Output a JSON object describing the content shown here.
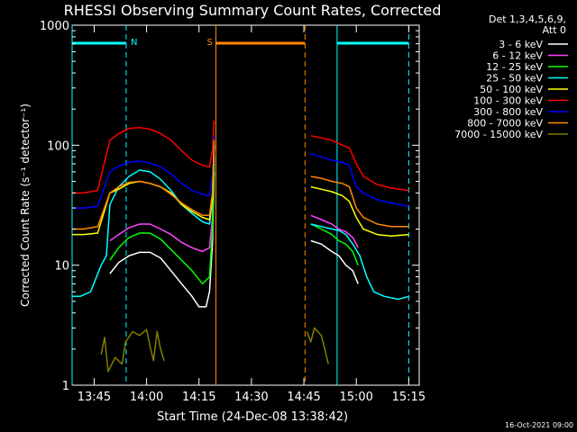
{
  "chart_data": {
    "type": "line",
    "title": "RHESSI Observing Summary Count Rates, Corrected",
    "xlabel": "Start Time (24-Dec-08 13:38:42)",
    "ylabel": "Corrected Count Rate (s⁻¹ detector⁻¹)",
    "xlim": [
      "13:38:42",
      "15:18:00"
    ],
    "ylim": [
      1,
      1000
    ],
    "yscale": "log",
    "x_ticks": [
      "13:45",
      "14:00",
      "14:15",
      "14:30",
      "14:45",
      "15:00",
      "15:15"
    ],
    "y_ticks": [
      "1",
      "10",
      "100",
      "1000"
    ],
    "legend_header": [
      "Det 1,3,4,5,6,9,",
      "Att 0"
    ],
    "legend_position": "right",
    "footer_timestamp": "16-Oct-2021 09:00",
    "annotations": [
      {
        "label": "N",
        "start": "13:38:42",
        "end": "13:54:10",
        "kind": "night"
      },
      {
        "label": "S",
        "start": "14:19:50",
        "end": "14:45:20",
        "kind": "saa"
      },
      {
        "label": "",
        "start": "14:54:30",
        "end": "15:15:00",
        "kind": "night"
      }
    ],
    "series": [
      {
        "name": "3 - 6 keV",
        "color": "#ffffff",
        "points": [
          [
            "13:49:30",
            8.5
          ],
          [
            "13:52:00",
            10.5
          ],
          [
            "13:55:00",
            12
          ],
          [
            "13:58:00",
            12.8
          ],
          [
            "14:01:00",
            12.8
          ],
          [
            "14:04:00",
            11.5
          ],
          [
            "14:07:00",
            9
          ],
          [
            "14:10:00",
            7
          ],
          [
            "14:13:00",
            5.5
          ],
          [
            "14:15:00",
            4.5
          ],
          [
            "14:17:00",
            4.5
          ],
          [
            "14:18:00",
            6
          ],
          [
            "14:18:50",
            15
          ],
          [
            "14:19:20",
            60
          ],
          [
            "gap",
            null
          ],
          [
            "14:47:00",
            16
          ],
          [
            "14:50:00",
            15
          ],
          [
            "14:53:00",
            13
          ],
          [
            "14:55:00",
            12
          ],
          [
            "14:57:00",
            10
          ],
          [
            "14:59:00",
            9
          ],
          [
            "15:00:30",
            7
          ]
        ]
      },
      {
        "name": "6 - 12 keV",
        "color": "#ff44ff",
        "points": [
          [
            "13:49:30",
            16
          ],
          [
            "13:52:00",
            18
          ],
          [
            "13:55:00",
            20.5
          ],
          [
            "13:58:00",
            22
          ],
          [
            "14:01:00",
            22
          ],
          [
            "14:04:00",
            20
          ],
          [
            "14:07:00",
            18
          ],
          [
            "14:10:00",
            15.5
          ],
          [
            "14:13:00",
            14
          ],
          [
            "14:16:00",
            13
          ],
          [
            "14:18:00",
            14
          ],
          [
            "14:18:50",
            25
          ],
          [
            "14:19:20",
            80
          ],
          [
            "gap",
            null
          ],
          [
            "14:47:00",
            26
          ],
          [
            "14:50:00",
            24
          ],
          [
            "14:53:00",
            22
          ],
          [
            "14:55:00",
            20
          ],
          [
            "14:57:00",
            19
          ],
          [
            "14:59:00",
            17
          ],
          [
            "15:00:30",
            14
          ]
        ]
      },
      {
        "name": "12 - 25 keV",
        "color": "#00ff00",
        "points": [
          [
            "13:49:30",
            11
          ],
          [
            "13:52:00",
            14
          ],
          [
            "13:55:00",
            17
          ],
          [
            "13:58:00",
            18.5
          ],
          [
            "14:01:00",
            18.5
          ],
          [
            "14:04:00",
            16.5
          ],
          [
            "14:07:00",
            13.5
          ],
          [
            "14:10:00",
            11
          ],
          [
            "14:13:00",
            9
          ],
          [
            "14:16:00",
            7
          ],
          [
            "14:18:00",
            8
          ],
          [
            "14:18:50",
            20
          ],
          [
            "14:19:20",
            70
          ],
          [
            "gap",
            null
          ],
          [
            "14:47:00",
            22
          ],
          [
            "14:50:00",
            20
          ],
          [
            "14:53:00",
            18
          ],
          [
            "14:55:00",
            16
          ],
          [
            "14:57:00",
            15
          ],
          [
            "14:59:00",
            13
          ],
          [
            "15:00:30",
            10
          ]
        ]
      },
      {
        "name": "25 - 50 keV",
        "color": "#00ffff",
        "points": [
          [
            "13:38:42",
            5.5
          ],
          [
            "13:41:00",
            5.5
          ],
          [
            "13:44:00",
            6
          ],
          [
            "13:47:00",
            10
          ],
          [
            "13:48:30",
            12
          ],
          [
            "13:49:30",
            32
          ],
          [
            "13:52:00",
            45
          ],
          [
            "13:55:00",
            55
          ],
          [
            "13:58:00",
            62
          ],
          [
            "14:01:00",
            60
          ],
          [
            "14:04:00",
            52
          ],
          [
            "14:07:00",
            42
          ],
          [
            "14:10:00",
            32
          ],
          [
            "14:13:00",
            27
          ],
          [
            "14:16:00",
            23
          ],
          [
            "14:18:00",
            22
          ],
          [
            "14:18:50",
            35
          ],
          [
            "14:19:20",
            100
          ],
          [
            "gap",
            null
          ],
          [
            "14:47:00",
            22
          ],
          [
            "14:50:00",
            21
          ],
          [
            "14:53:00",
            20
          ],
          [
            "14:55:00",
            19.5
          ],
          [
            "14:57:00",
            18
          ],
          [
            "14:59:00",
            15
          ],
          [
            "15:01:00",
            12
          ],
          [
            "15:03:00",
            8
          ],
          [
            "15:05:00",
            6
          ],
          [
            "15:08:00",
            5.5
          ],
          [
            "15:12:00",
            5.2
          ],
          [
            "15:15:00",
            5.5
          ]
        ]
      },
      {
        "name": "50 - 100 keV",
        "color": "#ffff00",
        "points": [
          [
            "13:38:42",
            18
          ],
          [
            "13:42:00",
            18
          ],
          [
            "13:46:00",
            18.5
          ],
          [
            "13:49:30",
            40
          ],
          [
            "13:52:00",
            43
          ],
          [
            "13:55:00",
            48
          ],
          [
            "13:58:00",
            50
          ],
          [
            "14:01:00",
            48
          ],
          [
            "14:04:00",
            45
          ],
          [
            "14:07:00",
            40
          ],
          [
            "14:10:00",
            32
          ],
          [
            "14:13:00",
            28
          ],
          [
            "14:16:00",
            25
          ],
          [
            "14:18:00",
            24
          ],
          [
            "14:18:50",
            35
          ],
          [
            "14:19:20",
            100
          ],
          [
            "gap",
            null
          ],
          [
            "14:47:00",
            45
          ],
          [
            "14:50:00",
            43
          ],
          [
            "14:53:00",
            41
          ],
          [
            "14:56:00",
            38
          ],
          [
            "14:58:00",
            34
          ],
          [
            "15:00:00",
            25
          ],
          [
            "15:02:00",
            20
          ],
          [
            "15:06:00",
            18
          ],
          [
            "15:10:00",
            17.5
          ],
          [
            "15:15:00",
            18
          ]
        ]
      },
      {
        "name": "100 - 300 keV",
        "color": "#ff0000",
        "points": [
          [
            "13:38:42",
            40
          ],
          [
            "13:42:00",
            40
          ],
          [
            "13:46:00",
            42
          ],
          [
            "13:49:30",
            110
          ],
          [
            "13:52:00",
            125
          ],
          [
            "13:55:00",
            138
          ],
          [
            "13:58:00",
            140
          ],
          [
            "14:01:00",
            136
          ],
          [
            "14:04:00",
            125
          ],
          [
            "14:07:00",
            110
          ],
          [
            "14:10:00",
            90
          ],
          [
            "14:13:00",
            75
          ],
          [
            "14:16:00",
            68
          ],
          [
            "14:18:00",
            66
          ],
          [
            "14:18:50",
            90
          ],
          [
            "14:19:20",
            160
          ],
          [
            "gap",
            null
          ],
          [
            "14:47:00",
            120
          ],
          [
            "14:50:00",
            115
          ],
          [
            "14:53:00",
            110
          ],
          [
            "14:56:00",
            100
          ],
          [
            "14:58:00",
            95
          ],
          [
            "15:00:00",
            70
          ],
          [
            "15:02:00",
            55
          ],
          [
            "15:06:00",
            47
          ],
          [
            "15:10:00",
            44
          ],
          [
            "15:15:00",
            42
          ]
        ]
      },
      {
        "name": "300 - 800 keV",
        "color": "#0000ff",
        "points": [
          [
            "13:38:42",
            30
          ],
          [
            "13:42:00",
            30
          ],
          [
            "13:46:00",
            31
          ],
          [
            "13:49:30",
            60
          ],
          [
            "13:52:00",
            67
          ],
          [
            "13:55:00",
            72
          ],
          [
            "13:58:00",
            74
          ],
          [
            "14:01:00",
            71
          ],
          [
            "14:04:00",
            66
          ],
          [
            "14:07:00",
            58
          ],
          [
            "14:10:00",
            48
          ],
          [
            "14:13:00",
            42
          ],
          [
            "14:16:00",
            39
          ],
          [
            "14:18:00",
            38
          ],
          [
            "14:18:50",
            55
          ],
          [
            "14:19:20",
            120
          ],
          [
            "gap",
            null
          ],
          [
            "14:47:00",
            85
          ],
          [
            "14:50:00",
            80
          ],
          [
            "14:53:00",
            75
          ],
          [
            "14:56:00",
            72
          ],
          [
            "14:58:00",
            68
          ],
          [
            "15:00:00",
            45
          ],
          [
            "15:02:00",
            40
          ],
          [
            "15:06:00",
            35
          ],
          [
            "15:10:00",
            33
          ],
          [
            "15:15:00",
            31
          ]
        ]
      },
      {
        "name": "800 - 7000 keV",
        "color": "#ff8800",
        "points": [
          [
            "13:38:42",
            20
          ],
          [
            "13:42:00",
            20
          ],
          [
            "13:46:00",
            21
          ],
          [
            "13:49:30",
            40
          ],
          [
            "13:52:00",
            45
          ],
          [
            "13:55:00",
            49
          ],
          [
            "13:58:00",
            50
          ],
          [
            "14:01:00",
            48
          ],
          [
            "14:04:00",
            45
          ],
          [
            "14:07:00",
            39
          ],
          [
            "14:10:00",
            33
          ],
          [
            "14:13:00",
            29
          ],
          [
            "14:16:00",
            26
          ],
          [
            "14:18:00",
            26
          ],
          [
            "14:18:50",
            40
          ],
          [
            "14:19:20",
            110
          ],
          [
            "gap",
            null
          ],
          [
            "14:47:00",
            55
          ],
          [
            "14:50:00",
            53
          ],
          [
            "14:53:00",
            50
          ],
          [
            "14:56:00",
            48
          ],
          [
            "14:58:00",
            45
          ],
          [
            "15:00:00",
            30
          ],
          [
            "15:02:00",
            25
          ],
          [
            "15:06:00",
            22
          ],
          [
            "15:10:00",
            21
          ],
          [
            "15:15:00",
            21
          ]
        ]
      },
      {
        "name": "7000 - 15000 keV",
        "color": "#808000",
        "points": [
          [
            "13:47:00",
            1.8
          ],
          [
            "13:48:00",
            2.5
          ],
          [
            "13:49:00",
            1.3
          ],
          [
            "13:51:00",
            1.7
          ],
          [
            "13:53:00",
            1.5
          ],
          [
            "13:54:00",
            2.3
          ],
          [
            "13:56:00",
            2.8
          ],
          [
            "13:58:00",
            2.6
          ],
          [
            "14:00:00",
            2.9
          ],
          [
            "14:01:00",
            2.1
          ],
          [
            "14:02:00",
            1.6
          ],
          [
            "14:03:00",
            2.8
          ],
          [
            "14:04:00",
            2
          ],
          [
            "14:05:00",
            1.6
          ],
          [
            "gap",
            null
          ],
          [
            "14:45:50",
            2.8
          ],
          [
            "14:47:00",
            2.3
          ],
          [
            "14:48:00",
            3
          ],
          [
            "14:50:00",
            2.6
          ],
          [
            "14:51:00",
            2
          ],
          [
            "14:52:00",
            1.5
          ]
        ]
      }
    ]
  }
}
